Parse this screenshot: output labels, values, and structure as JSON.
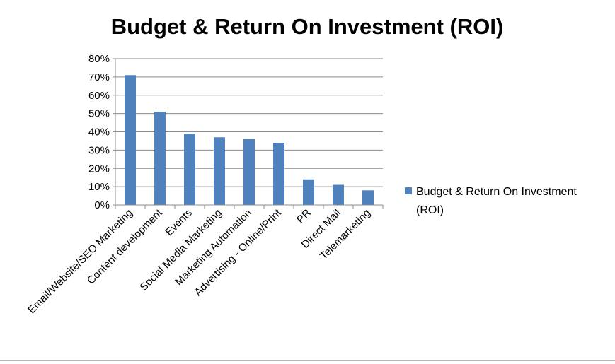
{
  "chart_data": {
    "type": "bar",
    "title": "Budget & Return On Investment (ROI)",
    "categories": [
      "Email/Website/SEO Marketing",
      "Content development",
      "Events",
      "Social Media Marketing",
      "Marketing Automation",
      "Advertising - Online/Print",
      "PR",
      "Direct Mail",
      "Telemarketing"
    ],
    "series": [
      {
        "name": "Budget & Return On Investment (ROI)",
        "values": [
          71,
          51,
          39,
          37,
          36,
          34,
          14,
          11,
          8
        ],
        "color": "#4f81bd"
      }
    ],
    "ylim": [
      0,
      80
    ],
    "yticks": [
      "0%",
      "10%",
      "20%",
      "30%",
      "40%",
      "50%",
      "60%",
      "70%",
      "80%"
    ],
    "grid": true,
    "legend_position": "right",
    "legend_lines": [
      "Budget & Return On Investment",
      "(ROI)"
    ]
  }
}
